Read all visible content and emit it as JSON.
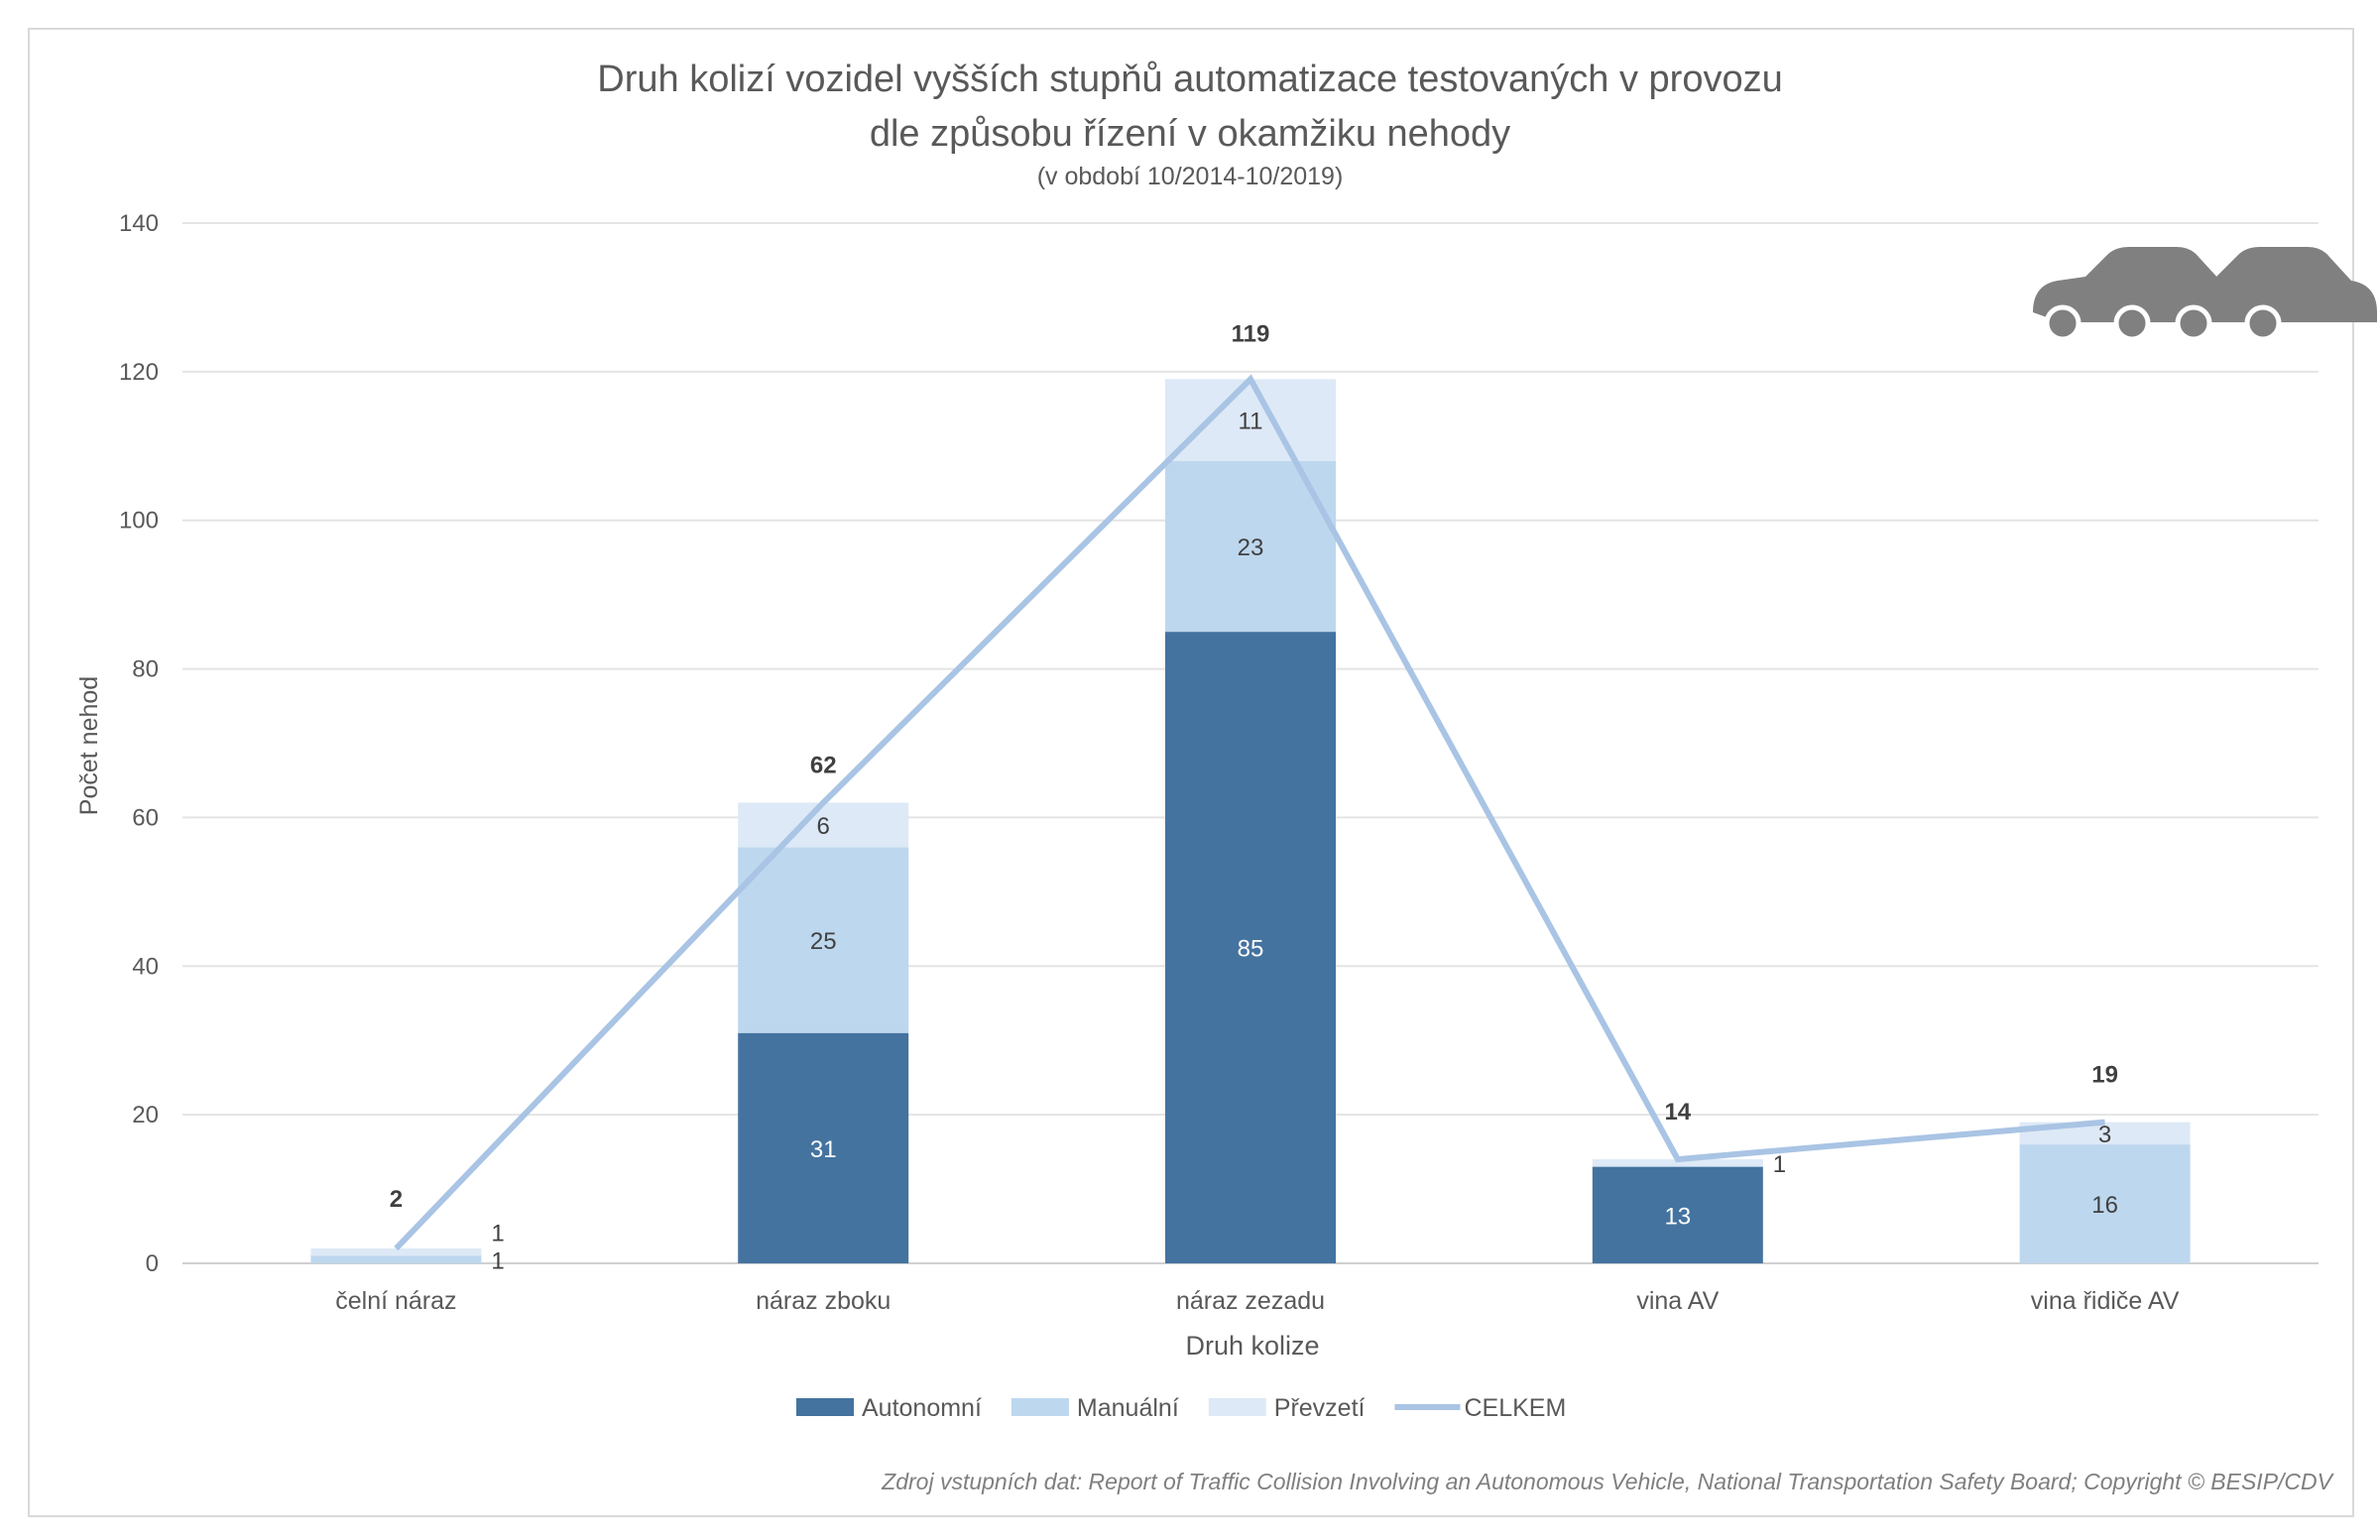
{
  "chart_data": {
    "type": "bar",
    "stacked": true,
    "title": "Druh kolizí vozidel vyšších stupňů automatizace testovaných v provozu",
    "title_line2": "dle způsobu řízení v okamžiku nehody",
    "subtitle": "(v období 10/2014-10/2019)",
    "xlabel": "Druh kolize",
    "ylabel": "Počet nehod",
    "ylim": [
      0,
      140
    ],
    "yticks": [
      0,
      20,
      40,
      60,
      80,
      100,
      120,
      140
    ],
    "grid": true,
    "legend_position": "bottom",
    "categories": [
      "čelní náraz",
      "náraz zboku",
      "náraz zezadu",
      "vina AV",
      "vina řidiče AV"
    ],
    "series": [
      {
        "name": "Autonomní",
        "kind": "bar",
        "color": "#44739f",
        "values": [
          0,
          31,
          85,
          13,
          0
        ]
      },
      {
        "name": "Manuální",
        "kind": "bar",
        "color": "#bdd7ee",
        "values": [
          1,
          25,
          23,
          0,
          16
        ]
      },
      {
        "name": "Převzetí",
        "kind": "bar",
        "color": "#dde9f6",
        "values": [
          1,
          6,
          11,
          1,
          3
        ]
      },
      {
        "name": "CELKEM",
        "kind": "line",
        "color": "#a9c4e4",
        "values": [
          2,
          62,
          119,
          14,
          19
        ]
      }
    ],
    "source": "Zdroj vstupních dat: Report of Traffic Collision Involving an Autonomous Vehicle, National Transportation Safety Board; Copyright © BESIP/CDV",
    "icon": "car-collision-icon"
  }
}
